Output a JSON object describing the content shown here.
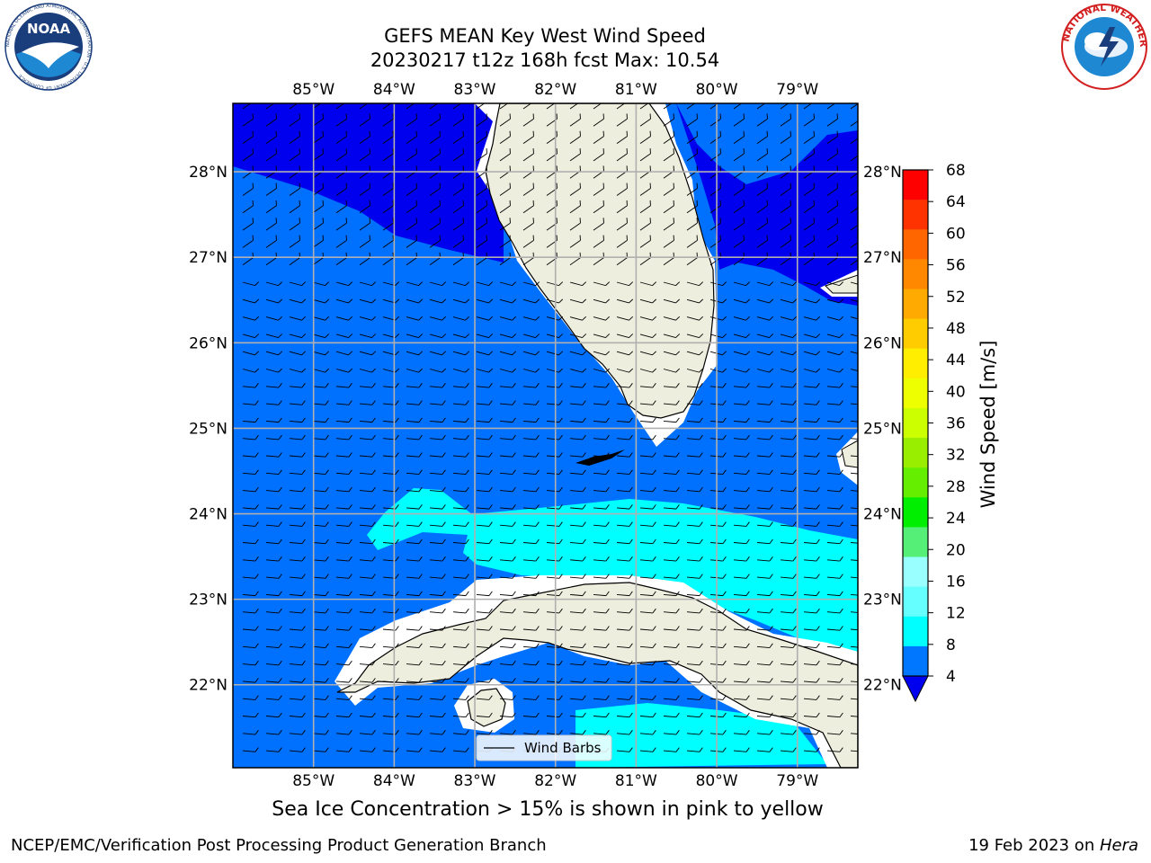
{
  "header": {
    "title_line1": "GEFS MEAN Key West Wind Speed",
    "title_line2": "20230217 t12z 168h fcst   Max: 10.54"
  },
  "logos": {
    "left": {
      "label": "NOAA",
      "icon": "noaa-logo-icon",
      "ring_text": "NATIONAL OCEANIC AND ATMOSPHERIC ADMINISTRATION · U.S. DEPARTMENT OF COMMERCE"
    },
    "right": {
      "label": "NATIONAL WEATHER SERVICE",
      "icon": "nws-logo-icon"
    }
  },
  "map": {
    "lon_labels": [
      "85°W",
      "84°W",
      "83°W",
      "82°W",
      "81°W",
      "80°W",
      "79°W"
    ],
    "lat_labels": [
      "28°N",
      "27°N",
      "26°N",
      "25°N",
      "24°N",
      "23°N",
      "22°N"
    ],
    "lon_values": [
      -85,
      -84,
      -83,
      -82,
      -81,
      -80,
      -79
    ],
    "lat_values": [
      28,
      27,
      26,
      25,
      24,
      23,
      22
    ],
    "lon_range": [
      -86,
      -78.25
    ],
    "lat_range": [
      21.03,
      28.8
    ],
    "legend_label": "Wind Barbs",
    "colors": {
      "land": "#eeeede",
      "grid": "#b0b0b0",
      "speed_4_8": "#0070ff",
      "speed_lt4": "#0000ee",
      "speed_8_12": "#00ffff"
    }
  },
  "colorbar": {
    "label": "Wind Speed [m/s]",
    "ticks": [
      "68",
      "64",
      "60",
      "56",
      "52",
      "48",
      "44",
      "40",
      "36",
      "32",
      "28",
      "24",
      "20",
      "16",
      "12",
      "8",
      "4"
    ],
    "colors": [
      "#ff0000",
      "#ff3300",
      "#ff6600",
      "#ff8800",
      "#ffaa00",
      "#ffcc00",
      "#ffee00",
      "#eeff00",
      "#ccff00",
      "#99ee00",
      "#66ee00",
      "#00ee00",
      "#55ee77",
      "#99ffff",
      "#66ffff",
      "#00ffff",
      "#0077ff"
    ],
    "under_color": "#0000ee"
  },
  "footer": {
    "note": "Sea Ice Concentration > 15% is shown in pink to yellow",
    "left": "NCEP/EMC/Verification Post Processing Product Generation Branch",
    "right_prefix": "19 Feb 2023 on ",
    "right_host": "Hera"
  }
}
